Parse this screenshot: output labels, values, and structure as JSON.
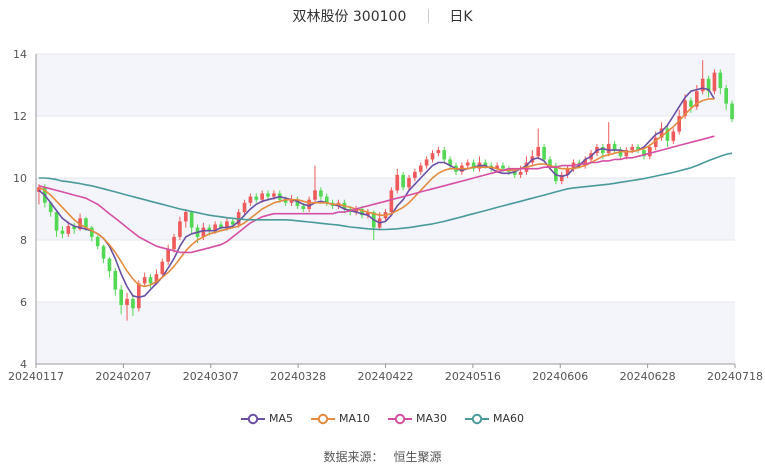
{
  "header": {
    "title": "双林股份 300100",
    "subtitle": "日K"
  },
  "source": {
    "label": "数据来源：",
    "value": "恒生聚源"
  },
  "chart_data": {
    "type": "candlestick",
    "ylim": [
      4,
      14
    ],
    "yticks": [
      4,
      6,
      8,
      10,
      12,
      14
    ],
    "xticks": [
      "20240117",
      "20240207",
      "20240307",
      "20240328",
      "20240422",
      "20240516",
      "20240606",
      "20240628",
      "20240718"
    ],
    "up_color": "#ef5a5a",
    "down_color": "#52d852",
    "candles": [
      [
        9.55,
        9.7,
        9.8,
        9.15
      ],
      [
        9.7,
        9.2,
        9.8,
        9.05
      ],
      [
        9.2,
        8.9,
        9.25,
        8.75
      ],
      [
        8.9,
        8.3,
        8.95,
        8.1
      ],
      [
        8.3,
        8.2,
        8.45,
        8.05
      ],
      [
        8.2,
        8.45,
        8.6,
        8.1
      ],
      [
        8.45,
        8.35,
        8.55,
        8.2
      ],
      [
        8.35,
        8.7,
        8.85,
        8.3
      ],
      [
        8.7,
        8.4,
        8.75,
        8.3
      ],
      [
        8.4,
        8.1,
        8.45,
        7.95
      ],
      [
        8.1,
        7.8,
        8.15,
        7.7
      ],
      [
        7.8,
        7.4,
        7.85,
        7.25
      ],
      [
        7.4,
        7.0,
        7.45,
        6.8
      ],
      [
        7.0,
        6.4,
        7.1,
        6.2
      ],
      [
        6.4,
        5.9,
        6.55,
        5.6
      ],
      [
        5.9,
        6.1,
        6.3,
        5.4
      ],
      [
        6.1,
        5.8,
        6.25,
        5.55
      ],
      [
        5.8,
        6.6,
        6.7,
        5.7
      ],
      [
        6.6,
        6.8,
        6.95,
        6.5
      ],
      [
        6.8,
        6.6,
        6.9,
        6.45
      ],
      [
        6.6,
        6.9,
        7.05,
        6.55
      ],
      [
        6.9,
        7.3,
        7.4,
        6.85
      ],
      [
        7.3,
        7.7,
        7.85,
        7.2
      ],
      [
        7.7,
        8.1,
        8.2,
        7.6
      ],
      [
        8.1,
        8.6,
        8.75,
        8.0
      ],
      [
        8.6,
        8.9,
        9.0,
        8.4
      ],
      [
        8.9,
        8.4,
        8.95,
        8.2
      ],
      [
        8.4,
        8.1,
        8.5,
        7.9
      ],
      [
        8.1,
        8.4,
        8.55,
        8.0
      ],
      [
        8.4,
        8.3,
        8.5,
        8.15
      ],
      [
        8.3,
        8.5,
        8.6,
        8.2
      ],
      [
        8.5,
        8.4,
        8.6,
        8.3
      ],
      [
        8.4,
        8.6,
        8.7,
        8.3
      ],
      [
        8.6,
        8.5,
        8.7,
        8.4
      ],
      [
        8.5,
        8.9,
        9.0,
        8.4
      ],
      [
        8.9,
        9.2,
        9.3,
        8.8
      ],
      [
        9.2,
        9.4,
        9.5,
        9.1
      ],
      [
        9.4,
        9.3,
        9.5,
        9.2
      ],
      [
        9.3,
        9.5,
        9.6,
        9.2
      ],
      [
        9.5,
        9.4,
        9.6,
        9.3
      ],
      [
        9.4,
        9.5,
        9.6,
        9.3
      ],
      [
        9.5,
        9.3,
        9.6,
        9.2
      ],
      [
        9.3,
        9.2,
        9.4,
        9.1
      ],
      [
        9.2,
        9.3,
        9.45,
        9.1
      ],
      [
        9.3,
        9.1,
        9.4,
        9.0
      ],
      [
        9.1,
        9.0,
        9.2,
        8.9
      ],
      [
        9.0,
        9.3,
        9.4,
        8.9
      ],
      [
        9.3,
        9.6,
        10.4,
        9.2
      ],
      [
        9.6,
        9.4,
        9.7,
        9.3
      ],
      [
        9.4,
        9.2,
        9.5,
        9.1
      ],
      [
        9.2,
        9.1,
        9.3,
        9.0
      ],
      [
        9.1,
        9.2,
        9.3,
        9.0
      ],
      [
        9.2,
        9.0,
        9.3,
        8.9
      ],
      [
        9.0,
        8.9,
        9.1,
        8.8
      ],
      [
        8.9,
        9.0,
        9.1,
        8.8
      ],
      [
        9.0,
        8.8,
        9.1,
        8.7
      ],
      [
        8.8,
        8.9,
        9.0,
        8.7
      ],
      [
        8.9,
        8.4,
        8.95,
        8.0
      ],
      [
        8.4,
        8.7,
        8.9,
        8.3
      ],
      [
        8.7,
        8.9,
        9.0,
        8.6
      ],
      [
        8.9,
        9.6,
        9.7,
        8.8
      ],
      [
        9.6,
        10.1,
        10.3,
        9.5
      ],
      [
        10.1,
        9.7,
        10.2,
        9.6
      ],
      [
        9.7,
        10.0,
        10.1,
        9.6
      ],
      [
        10.0,
        10.2,
        10.3,
        9.9
      ],
      [
        10.2,
        10.4,
        10.5,
        10.1
      ],
      [
        10.4,
        10.6,
        10.7,
        10.3
      ],
      [
        10.6,
        10.8,
        10.9,
        10.5
      ],
      [
        10.8,
        10.9,
        11.0,
        10.7
      ],
      [
        10.9,
        10.6,
        11.0,
        10.5
      ],
      [
        10.6,
        10.4,
        10.7,
        10.3
      ],
      [
        10.4,
        10.2,
        10.5,
        10.1
      ],
      [
        10.2,
        10.4,
        10.5,
        10.1
      ],
      [
        10.4,
        10.5,
        10.6,
        10.3
      ],
      [
        10.5,
        10.3,
        10.6,
        10.2
      ],
      [
        10.3,
        10.5,
        10.7,
        10.2
      ],
      [
        10.5,
        10.4,
        10.6,
        10.3
      ],
      [
        10.4,
        10.3,
        10.5,
        10.2
      ],
      [
        10.3,
        10.4,
        10.5,
        10.2
      ],
      [
        10.4,
        10.3,
        10.5,
        10.2
      ],
      [
        10.3,
        10.2,
        10.4,
        10.1
      ],
      [
        10.2,
        10.1,
        10.3,
        10.0
      ],
      [
        10.1,
        10.2,
        10.4,
        10.0
      ],
      [
        10.2,
        10.5,
        10.7,
        10.1
      ],
      [
        10.5,
        10.7,
        10.9,
        10.4
      ],
      [
        10.7,
        11.0,
        11.6,
        10.6
      ],
      [
        11.0,
        10.6,
        11.1,
        10.5
      ],
      [
        10.6,
        10.4,
        10.7,
        10.3
      ],
      [
        10.4,
        9.9,
        10.5,
        9.8
      ],
      [
        9.9,
        10.1,
        10.2,
        9.8
      ],
      [
        10.1,
        10.3,
        10.4,
        10.0
      ],
      [
        10.3,
        10.5,
        10.6,
        10.2
      ],
      [
        10.5,
        10.4,
        10.6,
        10.3
      ],
      [
        10.4,
        10.6,
        10.7,
        10.3
      ],
      [
        10.6,
        10.8,
        10.9,
        10.5
      ],
      [
        10.8,
        11.0,
        11.1,
        10.7
      ],
      [
        11.0,
        10.8,
        11.1,
        10.6
      ],
      [
        10.8,
        11.1,
        11.8,
        10.7
      ],
      [
        11.1,
        10.9,
        11.2,
        10.8
      ],
      [
        10.9,
        10.7,
        11.0,
        10.6
      ],
      [
        10.7,
        10.9,
        11.0,
        10.6
      ],
      [
        10.9,
        11.0,
        11.1,
        10.8
      ],
      [
        11.0,
        10.9,
        11.1,
        10.8
      ],
      [
        10.9,
        10.7,
        11.0,
        10.6
      ],
      [
        10.7,
        11.0,
        11.1,
        10.6
      ],
      [
        11.0,
        11.3,
        11.5,
        10.9
      ],
      [
        11.3,
        11.6,
        11.8,
        11.2
      ],
      [
        11.6,
        11.2,
        11.7,
        11.0
      ],
      [
        11.2,
        11.5,
        11.6,
        11.1
      ],
      [
        11.5,
        12.0,
        12.2,
        11.4
      ],
      [
        12.0,
        12.5,
        12.7,
        11.9
      ],
      [
        12.5,
        12.3,
        12.6,
        12.1
      ],
      [
        12.3,
        12.8,
        13.0,
        12.2
      ],
      [
        12.8,
        13.2,
        13.8,
        12.7
      ],
      [
        13.2,
        12.8,
        13.3,
        12.6
      ],
      [
        12.8,
        13.4,
        13.5,
        12.7
      ],
      [
        13.4,
        12.9,
        13.5,
        12.7
      ],
      [
        12.9,
        12.4,
        13.0,
        12.2
      ],
      [
        12.4,
        11.9,
        12.5,
        11.8
      ]
    ],
    "ma": [
      {
        "name": "MA5",
        "color": "#6a4fa3",
        "values": [
          9.6,
          9.45,
          9.2,
          8.95,
          8.7,
          8.55,
          8.45,
          8.4,
          8.35,
          8.3,
          8.2,
          8.05,
          7.8,
          7.4,
          6.9,
          6.5,
          6.2,
          6.15,
          6.2,
          6.4,
          6.6,
          6.8,
          7.1,
          7.4,
          7.8,
          8.1,
          8.2,
          8.25,
          8.3,
          8.3,
          8.3,
          8.4,
          8.4,
          8.45,
          8.6,
          8.8,
          9.0,
          9.15,
          9.25,
          9.3,
          9.35,
          9.4,
          9.35,
          9.3,
          9.25,
          9.15,
          9.1,
          9.2,
          9.25,
          9.2,
          9.15,
          9.1,
          9.0,
          8.95,
          8.9,
          8.85,
          8.8,
          8.65,
          8.55,
          8.6,
          8.8,
          9.1,
          9.3,
          9.6,
          9.8,
          10.0,
          10.2,
          10.4,
          10.5,
          10.5,
          10.4,
          10.3,
          10.25,
          10.3,
          10.35,
          10.4,
          10.4,
          10.3,
          10.2,
          10.15,
          10.15,
          10.2,
          10.3,
          10.4,
          10.6,
          10.65,
          10.55,
          10.3,
          10.1,
          10.05,
          10.1,
          10.3,
          10.4,
          10.6,
          10.7,
          10.9,
          10.95,
          10.9,
          10.9,
          10.9,
          10.85,
          10.85,
          10.9,
          11.0,
          11.2,
          11.4,
          11.5,
          11.7,
          12.0,
          12.3,
          12.6,
          12.8,
          12.85,
          12.9,
          12.85,
          12.55
        ]
      },
      {
        "name": "MA10",
        "color": "#e48b3e",
        "values": [
          9.7,
          9.6,
          9.45,
          9.25,
          9.05,
          8.85,
          8.65,
          8.5,
          8.4,
          8.3,
          8.2,
          8.05,
          7.85,
          7.6,
          7.3,
          7.0,
          6.75,
          6.55,
          6.5,
          6.55,
          6.65,
          6.8,
          6.95,
          7.15,
          7.4,
          7.65,
          7.85,
          8.0,
          8.1,
          8.2,
          8.25,
          8.3,
          8.35,
          8.4,
          8.45,
          8.55,
          8.7,
          8.85,
          9.0,
          9.1,
          9.2,
          9.25,
          9.3,
          9.3,
          9.3,
          9.25,
          9.2,
          9.2,
          9.2,
          9.2,
          9.15,
          9.15,
          9.1,
          9.05,
          9.0,
          8.95,
          8.9,
          8.85,
          8.8,
          8.8,
          8.85,
          8.95,
          9.05,
          9.2,
          9.4,
          9.6,
          9.8,
          10.0,
          10.15,
          10.25,
          10.3,
          10.3,
          10.3,
          10.3,
          10.35,
          10.35,
          10.35,
          10.35,
          10.3,
          10.25,
          10.25,
          10.25,
          10.3,
          10.35,
          10.4,
          10.45,
          10.45,
          10.4,
          10.35,
          10.3,
          10.3,
          10.3,
          10.35,
          10.4,
          10.5,
          10.6,
          10.7,
          10.75,
          10.8,
          10.85,
          10.85,
          10.85,
          10.9,
          10.95,
          11.05,
          11.2,
          11.35,
          11.5,
          11.65,
          11.85,
          12.05,
          12.25,
          12.4,
          12.5,
          12.55,
          12.55
        ]
      },
      {
        "name": "MA30",
        "color": "#d64fa5",
        "values": [
          9.75,
          9.7,
          9.65,
          9.6,
          9.55,
          9.5,
          9.45,
          9.4,
          9.35,
          9.25,
          9.15,
          9.0,
          8.85,
          8.7,
          8.55,
          8.4,
          8.25,
          8.1,
          8.0,
          7.9,
          7.8,
          7.75,
          7.7,
          7.65,
          7.6,
          7.6,
          7.6,
          7.65,
          7.7,
          7.75,
          7.8,
          7.85,
          7.95,
          8.1,
          8.25,
          8.4,
          8.55,
          8.65,
          8.75,
          8.8,
          8.85,
          8.85,
          8.85,
          8.85,
          8.85,
          8.85,
          8.85,
          8.85,
          8.85,
          8.85,
          8.85,
          8.9,
          8.9,
          8.95,
          9.0,
          9.05,
          9.1,
          9.15,
          9.2,
          9.25,
          9.3,
          9.35,
          9.4,
          9.45,
          9.5,
          9.55,
          9.6,
          9.65,
          9.7,
          9.75,
          9.8,
          9.85,
          9.9,
          9.95,
          10.0,
          10.05,
          10.1,
          10.15,
          10.2,
          10.25,
          10.3,
          10.3,
          10.3,
          10.3,
          10.3,
          10.3,
          10.35,
          10.35,
          10.35,
          10.4,
          10.4,
          10.4,
          10.45,
          10.45,
          10.5,
          10.5,
          10.55,
          10.55,
          10.6,
          10.6,
          10.65,
          10.65,
          10.7,
          10.75,
          10.8,
          10.85,
          10.9,
          10.95,
          11.0,
          11.05,
          11.1,
          11.15,
          11.2,
          11.25,
          11.3,
          11.35
        ]
      },
      {
        "name": "MA60",
        "color": "#4a9a9c",
        "values": [
          10.0,
          10.0,
          9.98,
          9.95,
          9.9,
          9.88,
          9.85,
          9.82,
          9.78,
          9.75,
          9.7,
          9.65,
          9.6,
          9.55,
          9.5,
          9.45,
          9.4,
          9.35,
          9.3,
          9.25,
          9.2,
          9.15,
          9.1,
          9.05,
          9.0,
          8.96,
          8.92,
          8.88,
          8.84,
          8.8,
          8.77,
          8.75,
          8.72,
          8.7,
          8.68,
          8.66,
          8.65,
          8.65,
          8.65,
          8.65,
          8.65,
          8.65,
          8.65,
          8.64,
          8.62,
          8.6,
          8.58,
          8.56,
          8.54,
          8.52,
          8.5,
          8.48,
          8.45,
          8.42,
          8.4,
          8.38,
          8.36,
          8.35,
          8.34,
          8.34,
          8.35,
          8.36,
          8.38,
          8.4,
          8.43,
          8.46,
          8.49,
          8.52,
          8.56,
          8.6,
          8.65,
          8.7,
          8.75,
          8.8,
          8.85,
          8.9,
          8.95,
          9.0,
          9.05,
          9.1,
          9.15,
          9.2,
          9.25,
          9.3,
          9.35,
          9.4,
          9.45,
          9.5,
          9.55,
          9.6,
          9.65,
          9.68,
          9.7,
          9.72,
          9.74,
          9.76,
          9.78,
          9.8,
          9.83,
          9.86,
          9.89,
          9.92,
          9.95,
          9.98,
          10.02,
          10.06,
          10.1,
          10.14,
          10.18,
          10.23,
          10.28,
          10.33,
          10.4,
          10.48,
          10.56,
          10.63,
          10.7,
          10.76,
          10.8
        ]
      }
    ]
  }
}
